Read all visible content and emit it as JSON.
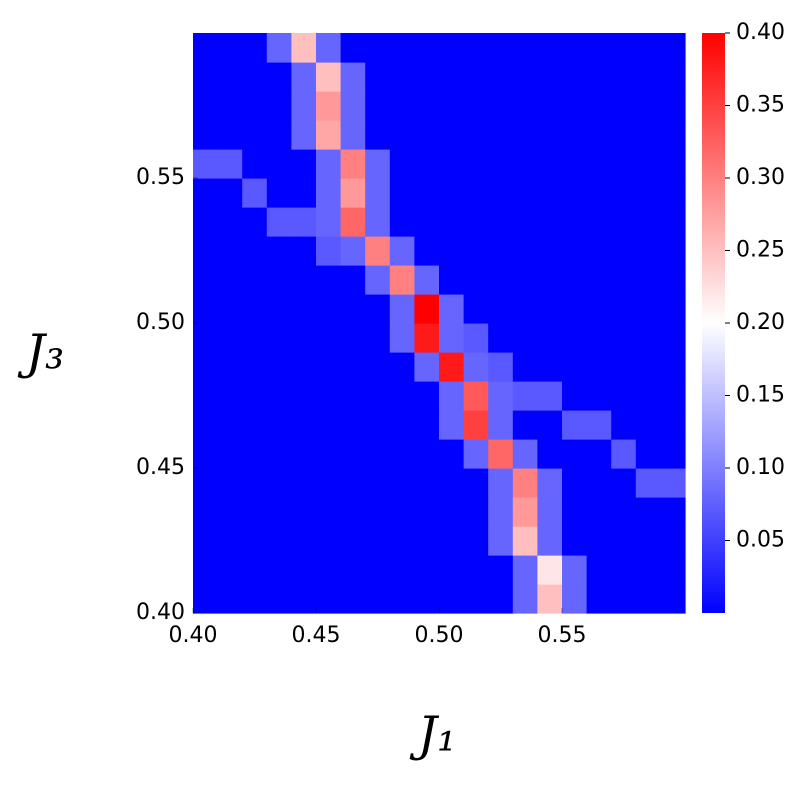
{
  "chart_data": {
    "type": "heatmap",
    "xlabel": "J₁",
    "ylabel": "J₃",
    "x": [
      0.405,
      0.415,
      0.425,
      0.435,
      0.445,
      0.455,
      0.465,
      0.475,
      0.485,
      0.495,
      0.505,
      0.515,
      0.525,
      0.535,
      0.545,
      0.555,
      0.565,
      0.575,
      0.585,
      0.595
    ],
    "y": [
      0.405,
      0.415,
      0.425,
      0.435,
      0.445,
      0.455,
      0.465,
      0.475,
      0.485,
      0.495,
      0.505,
      0.515,
      0.525,
      0.535,
      0.545,
      0.555,
      0.565,
      0.575,
      0.585,
      0.595
    ],
    "xlim": [
      0.4,
      0.6
    ],
    "ylim": [
      0.4,
      0.6
    ],
    "xticks": [
      {
        "value": 0.4,
        "label": "0.40"
      },
      {
        "value": 0.45,
        "label": "0.45"
      },
      {
        "value": 0.5,
        "label": "0.50"
      },
      {
        "value": 0.55,
        "label": "0.55"
      }
    ],
    "yticks": [
      {
        "value": 0.4,
        "label": "0.40"
      },
      {
        "value": 0.45,
        "label": "0.45"
      },
      {
        "value": 0.5,
        "label": "0.50"
      },
      {
        "value": 0.55,
        "label": "0.55"
      }
    ],
    "zlim": [
      0,
      0.4
    ],
    "zticks": [
      {
        "value": 0.05,
        "label": "0.05"
      },
      {
        "value": 0.1,
        "label": "0.10"
      },
      {
        "value": 0.15,
        "label": "0.15"
      },
      {
        "value": 0.2,
        "label": "0.20"
      },
      {
        "value": 0.25,
        "label": "0.25"
      },
      {
        "value": 0.3,
        "label": "0.30"
      },
      {
        "value": 0.35,
        "label": "0.35"
      },
      {
        "value": 0.4,
        "label": "0.40"
      }
    ],
    "colormap": [
      "#0000ff",
      "#ffffff",
      "#ff0000"
    ],
    "z": [
      [
        0,
        0,
        0,
        0,
        0,
        0,
        0,
        0,
        0,
        0,
        0,
        0,
        0,
        0.08,
        0.25,
        0.08,
        0,
        0,
        0,
        0
      ],
      [
        0,
        0,
        0,
        0,
        0,
        0,
        0,
        0,
        0,
        0,
        0,
        0,
        0,
        0.08,
        0.22,
        0.08,
        0,
        0,
        0,
        0
      ],
      [
        0,
        0,
        0,
        0,
        0,
        0,
        0,
        0,
        0,
        0,
        0,
        0,
        0.08,
        0.25,
        0.08,
        0,
        0,
        0,
        0,
        0
      ],
      [
        0,
        0,
        0,
        0,
        0,
        0,
        0,
        0,
        0,
        0,
        0,
        0,
        0.08,
        0.28,
        0.08,
        0,
        0,
        0,
        0,
        0
      ],
      [
        0,
        0,
        0,
        0,
        0,
        0,
        0,
        0,
        0,
        0,
        0,
        0,
        0.08,
        0.3,
        0.08,
        0,
        0,
        0,
        0.07,
        0.07
      ],
      [
        0,
        0,
        0,
        0,
        0,
        0,
        0,
        0,
        0,
        0,
        0,
        0.08,
        0.32,
        0.08,
        0,
        0,
        0,
        0.07,
        0,
        0
      ],
      [
        0,
        0,
        0,
        0,
        0,
        0,
        0,
        0,
        0,
        0,
        0.08,
        0.35,
        0.08,
        0,
        0,
        0.07,
        0.07,
        0,
        0,
        0
      ],
      [
        0,
        0,
        0,
        0,
        0,
        0,
        0,
        0,
        0,
        0,
        0.08,
        0.33,
        0.08,
        0.07,
        0.07,
        0,
        0,
        0,
        0,
        0
      ],
      [
        0,
        0,
        0,
        0,
        0,
        0,
        0,
        0,
        0,
        0.08,
        0.38,
        0.08,
        0.07,
        0,
        0,
        0,
        0,
        0,
        0,
        0
      ],
      [
        0,
        0,
        0,
        0,
        0,
        0,
        0,
        0,
        0.08,
        0.38,
        0.08,
        0.07,
        0,
        0,
        0,
        0,
        0,
        0,
        0,
        0
      ],
      [
        0,
        0,
        0,
        0,
        0,
        0,
        0,
        0,
        0.08,
        0.4,
        0.08,
        0,
        0,
        0,
        0,
        0,
        0,
        0,
        0,
        0
      ],
      [
        0,
        0,
        0,
        0,
        0,
        0,
        0,
        0.08,
        0.3,
        0.08,
        0,
        0,
        0,
        0,
        0,
        0,
        0,
        0,
        0,
        0
      ],
      [
        0,
        0,
        0,
        0,
        0,
        0.07,
        0.08,
        0.3,
        0.08,
        0,
        0,
        0,
        0,
        0,
        0,
        0,
        0,
        0,
        0,
        0
      ],
      [
        0,
        0,
        0,
        0.07,
        0.07,
        0.08,
        0.32,
        0.08,
        0,
        0,
        0,
        0,
        0,
        0,
        0,
        0,
        0,
        0,
        0,
        0
      ],
      [
        0,
        0,
        0.07,
        0,
        0,
        0.08,
        0.28,
        0.08,
        0,
        0,
        0,
        0,
        0,
        0,
        0,
        0,
        0,
        0,
        0,
        0
      ],
      [
        0.07,
        0.07,
        0,
        0,
        0,
        0.08,
        0.3,
        0.08,
        0,
        0,
        0,
        0,
        0,
        0,
        0,
        0,
        0,
        0,
        0,
        0
      ],
      [
        0,
        0,
        0,
        0,
        0.08,
        0.27,
        0.08,
        0,
        0,
        0,
        0,
        0,
        0,
        0,
        0,
        0,
        0,
        0,
        0,
        0
      ],
      [
        0,
        0,
        0,
        0,
        0.08,
        0.28,
        0.08,
        0,
        0,
        0,
        0,
        0,
        0,
        0,
        0,
        0,
        0,
        0,
        0,
        0
      ],
      [
        0,
        0,
        0,
        0,
        0.08,
        0.25,
        0.08,
        0,
        0,
        0,
        0,
        0,
        0,
        0,
        0,
        0,
        0,
        0,
        0,
        0
      ],
      [
        0,
        0,
        0,
        0.08,
        0.25,
        0.08,
        0,
        0,
        0,
        0,
        0,
        0,
        0,
        0,
        0,
        0,
        0,
        0,
        0,
        0
      ]
    ]
  }
}
